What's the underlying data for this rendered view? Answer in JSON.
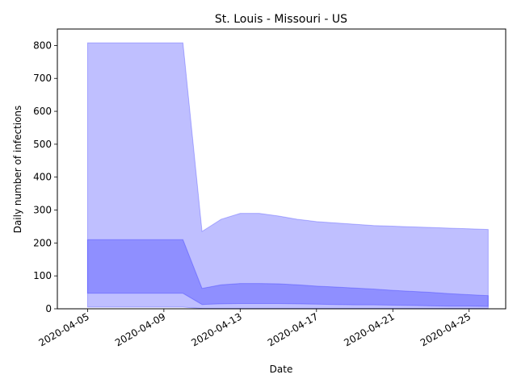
{
  "chart_data": {
    "type": "area",
    "title": "St. Louis - Missouri - US",
    "xlabel": "Date",
    "ylabel": "Daily number of infections",
    "x_ticks": [
      "2020-04-05",
      "2020-04-09",
      "2020-04-13",
      "2020-04-17",
      "2020-04-21",
      "2020-04-25"
    ],
    "y_ticks": [
      "0",
      "100",
      "200",
      "300",
      "400",
      "500",
      "600",
      "700",
      "800"
    ],
    "xlim": [
      "2020-04-03T10:00",
      "2020-04-26T22:00"
    ],
    "ylim": [
      0,
      850
    ],
    "grid": false,
    "legend": "none",
    "colors": {
      "band_fill": "#0000ff",
      "band_edge": "#0000ff"
    },
    "x": [
      "2020-04-05",
      "2020-04-10",
      "2020-04-11",
      "2020-04-12",
      "2020-04-13",
      "2020-04-14",
      "2020-04-15",
      "2020-04-16",
      "2020-04-17",
      "2020-04-18",
      "2020-04-19",
      "2020-04-20",
      "2020-04-21",
      "2020-04-22",
      "2020-04-23",
      "2020-04-24",
      "2020-04-25",
      "2020-04-26"
    ],
    "series": [
      {
        "lower": [
          5,
          5,
          1,
          1,
          1,
          1,
          1,
          1,
          1,
          1,
          1,
          1,
          1,
          1,
          1,
          1,
          1,
          1
        ],
        "upper": [
          808,
          808,
          235,
          272,
          290,
          290,
          282,
          272,
          265,
          261,
          257,
          253,
          251,
          249,
          247,
          245,
          243,
          241
        ]
      },
      {
        "lower": [
          47,
          47,
          13,
          15,
          16,
          16,
          16,
          15,
          14,
          13,
          12,
          12,
          11,
          10,
          9,
          8,
          8,
          7
        ],
        "upper": [
          210,
          210,
          62,
          73,
          77,
          77,
          76,
          73,
          69,
          66,
          63,
          60,
          56,
          53,
          50,
          46,
          43,
          40
        ]
      }
    ]
  }
}
